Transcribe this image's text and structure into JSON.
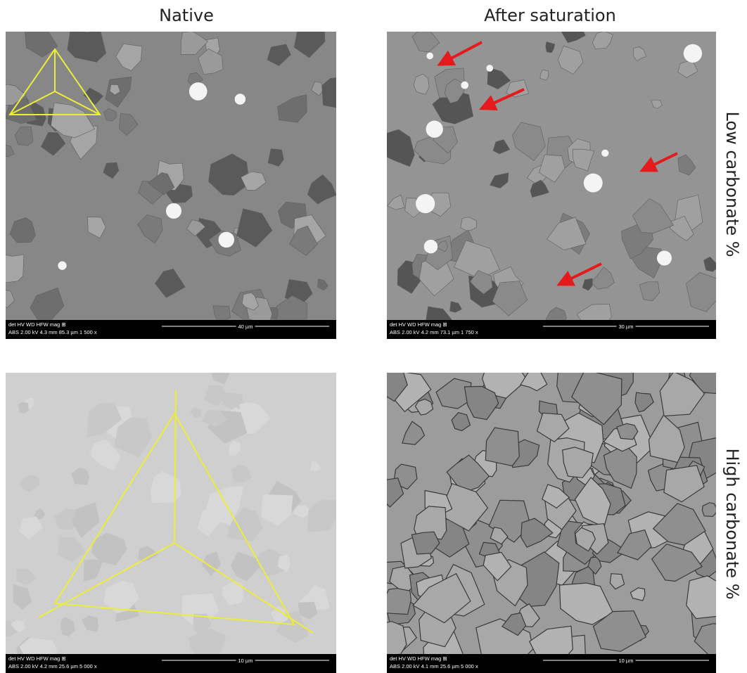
{
  "header": {
    "columns": [
      "Native",
      "After saturation"
    ]
  },
  "rows": [
    "Low carbonate %",
    "High carbonate %"
  ],
  "panels": [
    {
      "info": {
        "labels": "det   HV    WD    HFW   mag ⊞",
        "values": "ABS 2.00 kV 4.3 mm 85.3 µm 1 500 x",
        "scale": "40 µm"
      }
    },
    {
      "info": {
        "labels": "det   HV    WD    HFW   mag ⊞",
        "values": "ABS 2.00 kV 4.2 mm 73.1 µm 1 750 x",
        "scale": "30 µm"
      }
    },
    {
      "info": {
        "labels": "det   HV    WD    HFW   mag ⊞",
        "values": "ABS 2.00 kV 4.2 mm 25.6 µm 5 000 x",
        "scale": "10 µm"
      }
    },
    {
      "info": {
        "labels": "det   HV    WD    HFW   mag ⊞",
        "values": "ABS 2.00 kV 4.1 mm 25.6 µm 5 000 x",
        "scale": "10 µm"
      }
    }
  ]
}
